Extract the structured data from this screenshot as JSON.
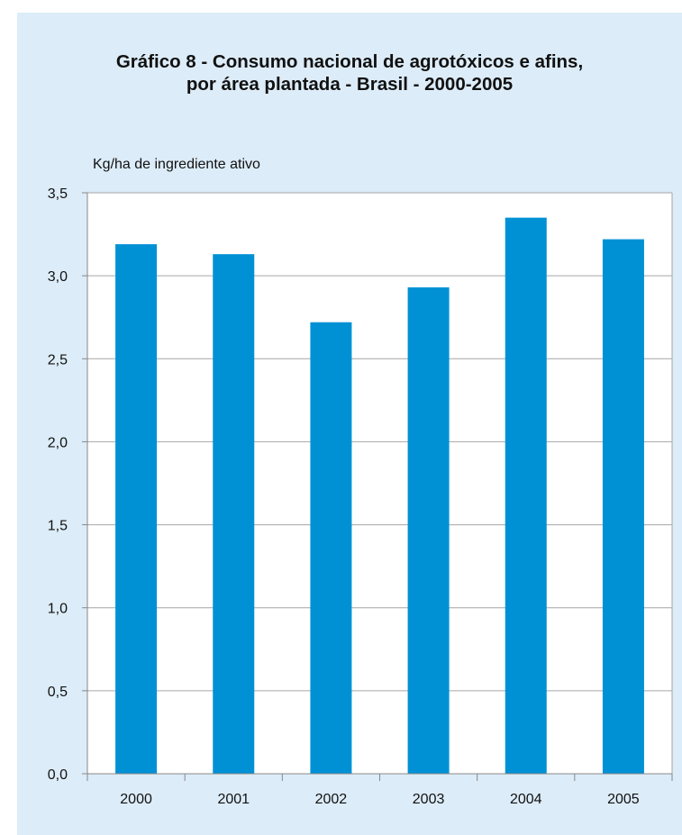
{
  "title_line1": "Gráfico 8 - Consumo nacional de agrotóxicos e afins,",
  "title_line2": "por área plantada - Brasil - 2000-2005",
  "ylabel": "Kg/ha de ingrediente ativo",
  "colors": {
    "bar": "#0091d5",
    "panel_bg": "#dcecf8",
    "grid": "#a6a6a6"
  },
  "chart_data": {
    "type": "bar",
    "title": "Gráfico 8 - Consumo nacional de agrotóxicos e afins, por área plantada - Brasil - 2000-2005",
    "xlabel": "",
    "ylabel": "Kg/ha de ingrediente ativo",
    "categories": [
      "2000",
      "2001",
      "2002",
      "2003",
      "2004",
      "2005"
    ],
    "values": [
      3.19,
      3.13,
      2.72,
      2.93,
      3.35,
      3.22
    ],
    "ylim": [
      0,
      3.5
    ],
    "yticks": [
      "0,0",
      "0,5",
      "1,0",
      "1,5",
      "2,0",
      "2,5",
      "3,0",
      "3,5"
    ],
    "ytick_values": [
      0,
      0.5,
      1.0,
      1.5,
      2.0,
      2.5,
      3.0,
      3.5
    ],
    "grid": true,
    "legend": "none"
  }
}
